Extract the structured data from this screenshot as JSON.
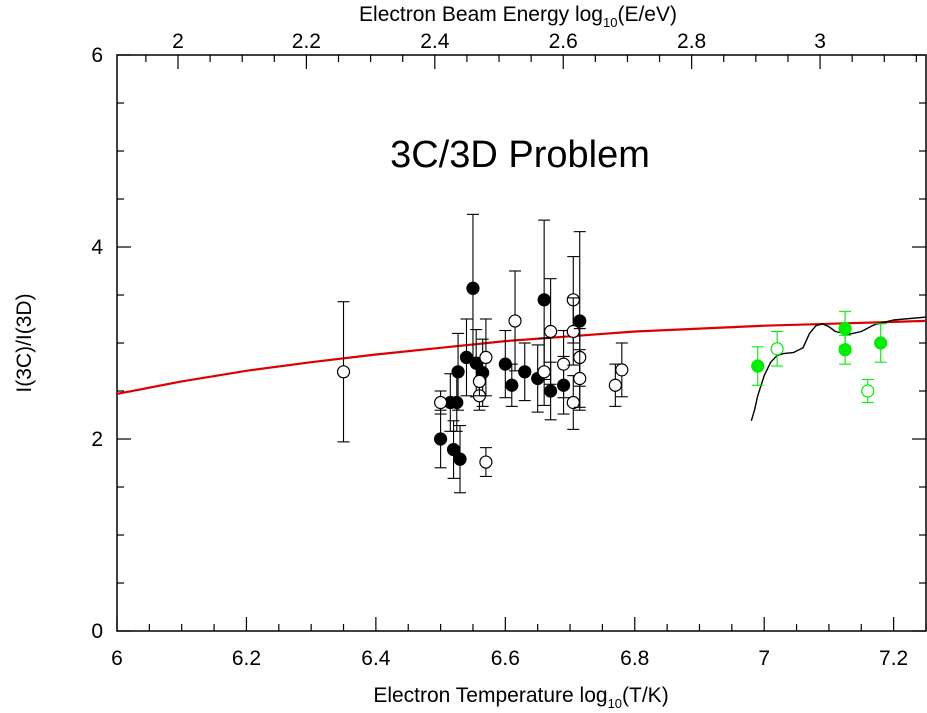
{
  "chart_data": {
    "type": "scatter",
    "title": "3C/3D Problem",
    "xlabel": {
      "prefix": "Electron Temperature log",
      "sub": "10",
      "suffix": "(T/K)"
    },
    "x2label": {
      "prefix": "Electron Beam Energy log",
      "sub": "10",
      "suffix": "(E/eV)"
    },
    "ylabel": "I(3C)/I(3D)",
    "xlim": [
      6,
      7.25
    ],
    "ylim": [
      0,
      6
    ],
    "x2lim": [
      1.905,
      3.165
    ],
    "xticks": [
      "6",
      "6.2",
      "6.4",
      "6.6",
      "6.8",
      "7",
      "7.2"
    ],
    "x2ticks": [
      "2",
      "2.2",
      "2.4",
      "2.6",
      "2.8",
      "3"
    ],
    "yticks": [
      "0",
      "2",
      "4",
      "6"
    ],
    "grid": false,
    "series": [
      {
        "marker": "filled-circle",
        "color": "#000000",
        "points": [
          {
            "x": 6.5,
            "y": 2.0,
            "err": 0.3
          },
          {
            "x": 6.515,
            "y": 2.38,
            "err": 0.3
          },
          {
            "x": 6.52,
            "y": 1.89,
            "err": 0.3
          },
          {
            "x": 6.525,
            "y": 2.38,
            "err": 0.3
          },
          {
            "x": 6.527,
            "y": 2.7,
            "err": 0.4
          },
          {
            "x": 6.53,
            "y": 1.79,
            "err": 0.35
          },
          {
            "x": 6.54,
            "y": 2.85,
            "err": 0.4
          },
          {
            "x": 6.55,
            "y": 3.57,
            "err": 0.77
          },
          {
            "x": 6.555,
            "y": 2.79,
            "err": 0.35
          },
          {
            "x": 6.565,
            "y": 2.69,
            "err": 0.35
          },
          {
            "x": 6.6,
            "y": 2.78,
            "err": 0.35
          },
          {
            "x": 6.61,
            "y": 2.56,
            "err": 0.22
          },
          {
            "x": 6.63,
            "y": 2.7,
            "err": 0.3
          },
          {
            "x": 6.65,
            "y": 2.63,
            "err": 0.35
          },
          {
            "x": 6.66,
            "y": 3.45,
            "err": 0.83
          },
          {
            "x": 6.67,
            "y": 2.5,
            "err": 0.3
          },
          {
            "x": 6.69,
            "y": 2.56,
            "err": 0.3
          },
          {
            "x": 6.715,
            "y": 3.23,
            "err": 0.93
          }
        ]
      },
      {
        "marker": "open-circle",
        "color": "#000000",
        "points": [
          {
            "x": 6.35,
            "y": 2.7,
            "err": 0.73
          },
          {
            "x": 6.5,
            "y": 2.38,
            "err": 0.12
          },
          {
            "x": 6.56,
            "y": 2.45,
            "err": 0.15
          },
          {
            "x": 6.56,
            "y": 2.6,
            "err": 0.15
          },
          {
            "x": 6.57,
            "y": 1.76,
            "err": 0.15
          },
          {
            "x": 6.57,
            "y": 2.85,
            "err": 0.4
          },
          {
            "x": 6.615,
            "y": 3.23,
            "err": 0.52
          },
          {
            "x": 6.66,
            "y": 2.7,
            "err": 0.35
          },
          {
            "x": 6.67,
            "y": 3.12,
            "err": 0.55
          },
          {
            "x": 6.69,
            "y": 2.78,
            "err": 0.35
          },
          {
            "x": 6.705,
            "y": 3.45,
            "err": 0.45
          },
          {
            "x": 6.705,
            "y": 3.12,
            "err": 0.35
          },
          {
            "x": 6.705,
            "y": 2.38,
            "err": 0.28
          },
          {
            "x": 6.715,
            "y": 2.85,
            "err": 0.3
          },
          {
            "x": 6.715,
            "y": 2.63,
            "err": 0.3
          },
          {
            "x": 6.77,
            "y": 2.56,
            "err": 0.22
          },
          {
            "x": 6.78,
            "y": 2.72,
            "err": 0.28
          }
        ]
      },
      {
        "marker": "filled-circle",
        "color": "#00ee00",
        "points": [
          {
            "x": 6.99,
            "y": 2.76,
            "err": 0.2
          },
          {
            "x": 7.125,
            "y": 3.15,
            "err": 0.18
          },
          {
            "x": 7.125,
            "y": 2.93,
            "err": 0.15
          },
          {
            "x": 7.18,
            "y": 3.0,
            "err": 0.2
          }
        ]
      },
      {
        "marker": "open-circle",
        "color": "#00ee00",
        "points": [
          {
            "x": 7.02,
            "y": 2.94,
            "err": 0.18
          },
          {
            "x": 7.16,
            "y": 2.5,
            "err": 0.12
          }
        ]
      }
    ],
    "curves": [
      {
        "color": "#dd0000",
        "points": [
          [
            6.0,
            2.47
          ],
          [
            6.1,
            2.6
          ],
          [
            6.2,
            2.71
          ],
          [
            6.3,
            2.8
          ],
          [
            6.4,
            2.88
          ],
          [
            6.5,
            2.95
          ],
          [
            6.6,
            3.02
          ],
          [
            6.7,
            3.07
          ],
          [
            6.8,
            3.12
          ],
          [
            6.9,
            3.15
          ],
          [
            7.0,
            3.18
          ],
          [
            7.1,
            3.2
          ],
          [
            7.2,
            3.22
          ],
          [
            7.25,
            3.23
          ]
        ]
      },
      {
        "color": "#000000",
        "points": [
          [
            6.98,
            2.19
          ],
          [
            6.985,
            2.3
          ],
          [
            6.99,
            2.45
          ],
          [
            7.0,
            2.66
          ],
          [
            7.01,
            2.8
          ],
          [
            7.02,
            2.87
          ],
          [
            7.03,
            2.89
          ],
          [
            7.045,
            2.9
          ],
          [
            7.06,
            2.95
          ],
          [
            7.07,
            3.1
          ],
          [
            7.08,
            3.18
          ],
          [
            7.09,
            3.2
          ],
          [
            7.1,
            3.17
          ],
          [
            7.11,
            3.12
          ],
          [
            7.13,
            3.09
          ],
          [
            7.15,
            3.12
          ],
          [
            7.17,
            3.19
          ],
          [
            7.2,
            3.24
          ],
          [
            7.25,
            3.27
          ]
        ]
      }
    ]
  }
}
